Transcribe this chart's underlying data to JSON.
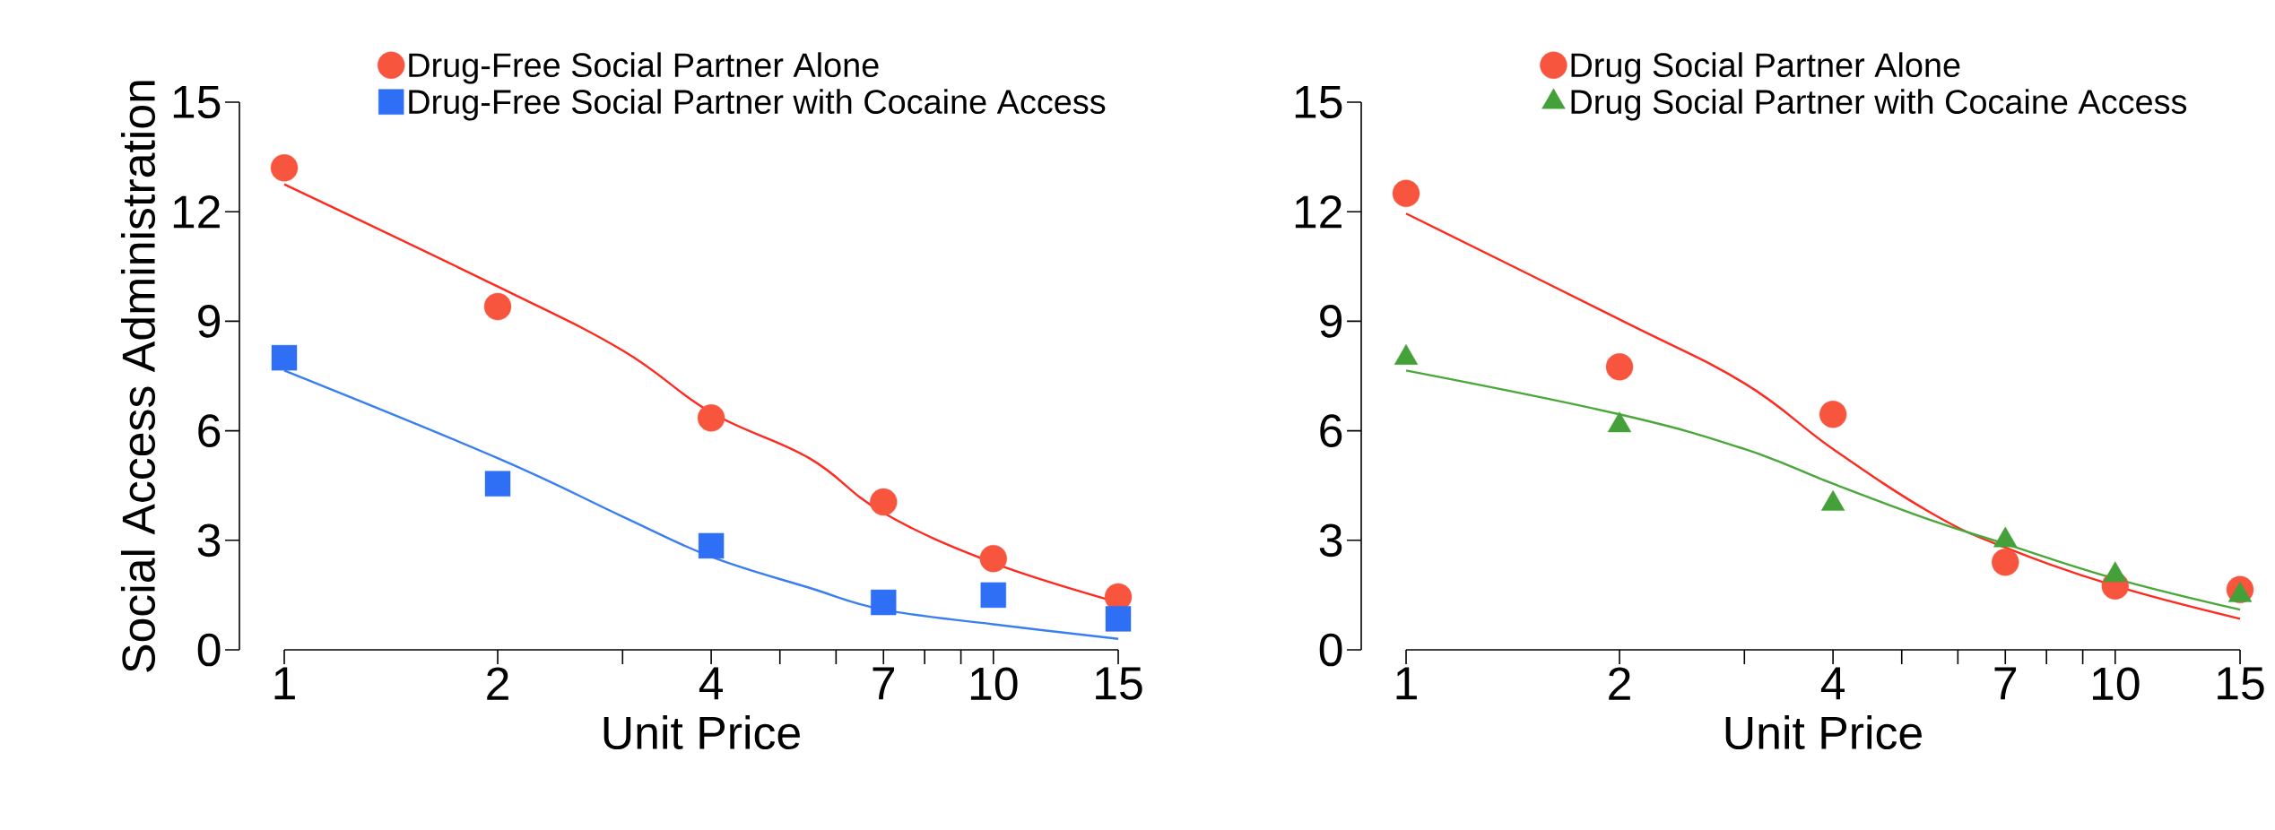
{
  "chart_data": [
    {
      "type": "scatter",
      "ylabel": "Social Access Administration",
      "xlabel": "Unit Price",
      "log": "x",
      "x": [
        1,
        2,
        4,
        7,
        10,
        15
      ],
      "xlim": [
        1,
        15
      ],
      "xticks": [
        1,
        2,
        {
          "value": 3,
          "label": null
        },
        4,
        {
          "value": 5,
          "label": null
        },
        {
          "value": 6,
          "label": null
        },
        7,
        {
          "value": 8,
          "label": null
        },
        {
          "value": 9,
          "label": null
        },
        10,
        15
      ],
      "ylim": [
        0,
        15
      ],
      "yticks": [
        0,
        3,
        6,
        9,
        12,
        15
      ],
      "legend": "top",
      "grid": false,
      "series": [
        {
          "type": "line",
          "color": "#ff2a1f",
          "x": [
            1,
            2,
            3,
            4,
            5.5,
            7,
            10,
            15
          ],
          "values": [
            12.75,
            9.95,
            8.2,
            6.5,
            5.25,
            3.75,
            2.38,
            1.3
          ],
          "marker": "none",
          "line_style": "solid"
        },
        {
          "type": "line",
          "color": "#3a7ff2",
          "x": [
            1,
            2,
            3,
            4,
            5.5,
            7,
            10,
            15
          ],
          "values": [
            7.65,
            5.25,
            3.65,
            2.55,
            1.7,
            1.1,
            0.7,
            0.3
          ],
          "marker": "none",
          "line_style": "solid"
        },
        {
          "name": "Drug-Free Social Partner Alone",
          "color": "#f8553f",
          "values": [
            13.2,
            9.4,
            6.35,
            4.05,
            2.5,
            1.45
          ],
          "marker": "circle"
        },
        {
          "name": "Drug-Free Social Partner with Cocaine Access",
          "color": "#2f6ff5",
          "values": [
            8.0,
            4.55,
            2.85,
            1.3,
            1.5,
            0.85
          ],
          "marker": "square"
        }
      ]
    },
    {
      "type": "scatter",
      "xlabel": "Unit Price",
      "log": "x",
      "x": [
        1,
        2,
        4,
        7,
        10,
        15
      ],
      "xlim": [
        1,
        15
      ],
      "xticks": [
        1,
        2,
        {
          "value": 3,
          "label": null
        },
        4,
        {
          "value": 5,
          "label": null
        },
        {
          "value": 6,
          "label": null
        },
        7,
        {
          "value": 8,
          "label": null
        },
        {
          "value": 9,
          "label": null
        },
        10,
        15
      ],
      "ylim": [
        0,
        15
      ],
      "yticks": [
        0,
        3,
        6,
        9,
        12,
        15
      ],
      "legend": "top",
      "grid": false,
      "series": [
        {
          "type": "line",
          "color": "#ff2a1f",
          "x": [
            1,
            2,
            3,
            4,
            5.5,
            7,
            10,
            15
          ],
          "values": [
            11.95,
            9.05,
            7.3,
            5.5,
            3.75,
            2.8,
            1.75,
            0.85
          ],
          "marker": "none",
          "line_style": "solid"
        },
        {
          "type": "line",
          "color": "#4aa83a",
          "x": [
            1,
            2,
            3,
            4,
            5.5,
            7,
            10,
            15
          ],
          "values": [
            7.65,
            6.45,
            5.5,
            4.55,
            3.55,
            2.9,
            1.95,
            1.1
          ],
          "marker": "none",
          "line_style": "solid"
        },
        {
          "name": "Drug Social Partner Alone",
          "color": "#f8553f",
          "values": [
            12.5,
            7.75,
            6.45,
            2.4,
            1.75,
            1.65
          ],
          "marker": "circle"
        },
        {
          "name": "Drug Social Partner with Cocaine Access",
          "color": "#44a038",
          "values": [
            8.0,
            6.15,
            4.0,
            3.0,
            2.05,
            1.5
          ],
          "marker": "triangle"
        }
      ]
    }
  ]
}
